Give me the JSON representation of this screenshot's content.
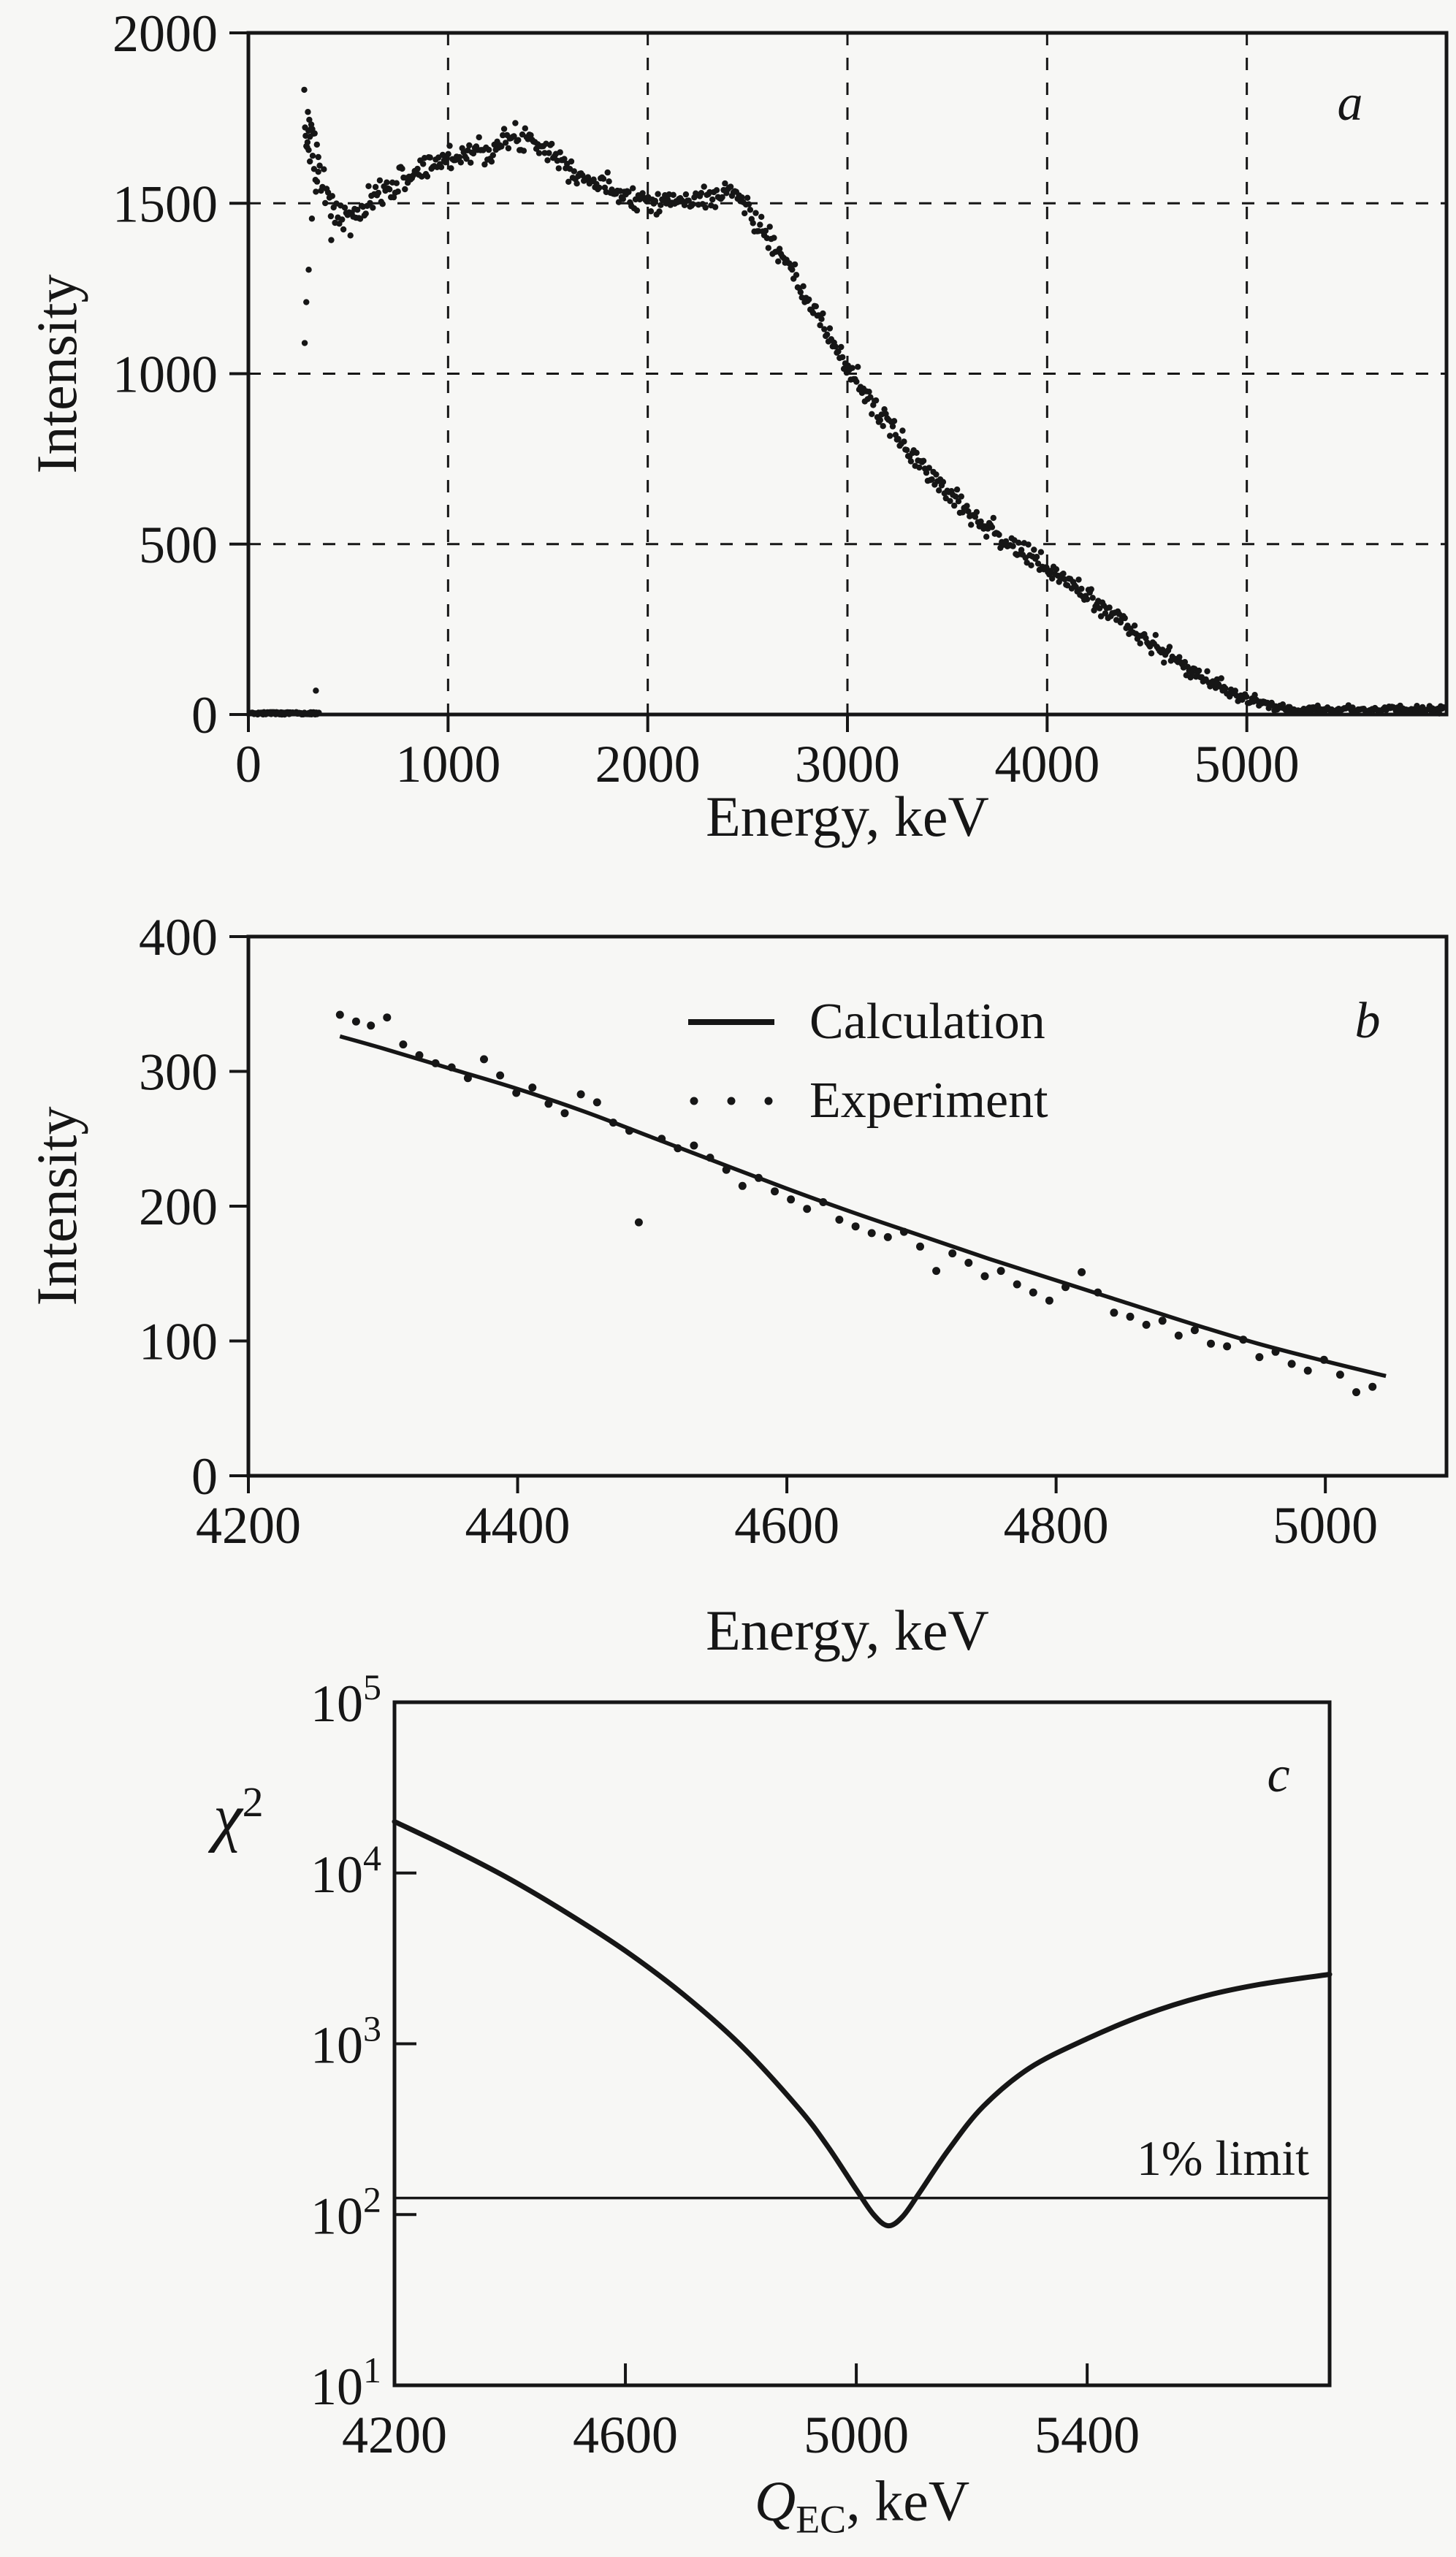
{
  "colors": {
    "background": "#f7f7f5",
    "ink": "#161616"
  },
  "seed": 7,
  "chart_data": [
    {
      "id": "a",
      "type": "scatter",
      "panel_label": "a",
      "xlabel": "Energy, keV",
      "ylabel": "Intensity",
      "xlim": [
        0,
        6000
      ],
      "ylim": [
        0,
        2000
      ],
      "xticks": [
        0,
        1000,
        2000,
        3000,
        4000,
        5000
      ],
      "yticks": [
        0,
        500,
        1000,
        1500,
        2000
      ],
      "grid": "dashed",
      "legend_position": "none",
      "series": [
        {
          "name": "measured-spectrum",
          "type": "scatter",
          "marker": "dot",
          "x_start": 280,
          "x_end": 5990,
          "x_step": 7,
          "dense_regions": [
            {
              "x_start": 284,
              "x_end": 350,
              "x_step": 6
            }
          ],
          "profile": [
            [
              280,
              1690
            ],
            [
              295,
              1715
            ],
            [
              310,
              1700
            ],
            [
              325,
              1665
            ],
            [
              340,
              1620
            ],
            [
              360,
              1560
            ],
            [
              400,
              1505
            ],
            [
              440,
              1470
            ],
            [
              480,
              1452
            ],
            [
              520,
              1455
            ],
            [
              560,
              1472
            ],
            [
              600,
              1492
            ],
            [
              650,
              1520
            ],
            [
              700,
              1545
            ],
            [
              750,
              1562
            ],
            [
              800,
              1580
            ],
            [
              850,
              1596
            ],
            [
              900,
              1610
            ],
            [
              950,
              1621
            ],
            [
              1000,
              1632
            ],
            [
              1050,
              1641
            ],
            [
              1100,
              1650
            ],
            [
              1150,
              1656
            ],
            [
              1200,
              1661
            ],
            [
              1250,
              1670
            ],
            [
              1300,
              1681
            ],
            [
              1350,
              1691
            ],
            [
              1400,
              1696
            ],
            [
              1450,
              1681
            ],
            [
              1500,
              1661
            ],
            [
              1550,
              1636
            ],
            [
              1600,
              1611
            ],
            [
              1650,
              1591
            ],
            [
              1700,
              1571
            ],
            [
              1750,
              1556
            ],
            [
              1800,
              1546
            ],
            [
              1850,
              1536
            ],
            [
              1900,
              1526
            ],
            [
              1950,
              1516
            ],
            [
              2000,
              1511
            ],
            [
              2100,
              1506
            ],
            [
              2200,
              1506
            ],
            [
              2300,
              1516
            ],
            [
              2350,
              1526
            ],
            [
              2400,
              1536
            ],
            [
              2450,
              1526
            ],
            [
              2500,
              1481
            ],
            [
              2550,
              1441
            ],
            [
              2600,
              1401
            ],
            [
              2700,
              1311
            ],
            [
              2800,
              1216
            ],
            [
              2900,
              1116
            ],
            [
              3000,
              1021
            ],
            [
              3100,
              931
            ],
            [
              3200,
              851
            ],
            [
              3300,
              781
            ],
            [
              3400,
              711
            ],
            [
              3500,
              661
            ],
            [
              3600,
              601
            ],
            [
              3700,
              551
            ],
            [
              3800,
              506
            ],
            [
              3900,
              466
            ],
            [
              4000,
              426
            ],
            [
              4100,
              391
            ],
            [
              4200,
              351
            ],
            [
              4300,
              306
            ],
            [
              4400,
              261
            ],
            [
              4500,
              216
            ],
            [
              4600,
              176
            ],
            [
              4700,
              136
            ],
            [
              4800,
              101
            ],
            [
              4900,
              71
            ],
            [
              5000,
              46
            ],
            [
              5050,
              34
            ],
            [
              5100,
              27
            ],
            [
              5150,
              21
            ],
            [
              5200,
              18
            ],
            [
              5300,
              16
            ],
            [
              5400,
              16
            ],
            [
              5600,
              15
            ],
            [
              5800,
              15
            ],
            [
              5990,
              15
            ]
          ],
          "sigma_profile": [
            [
              280,
              55
            ],
            [
              350,
              38
            ],
            [
              420,
              26
            ],
            [
              600,
              22
            ],
            [
              1200,
              20
            ],
            [
              2000,
              16
            ],
            [
              2600,
              17
            ],
            [
              3200,
              18
            ],
            [
              3800,
              16
            ],
            [
              4600,
              13
            ],
            [
              4900,
              10
            ],
            [
              5050,
              8
            ],
            [
              5200,
              5
            ],
            [
              5990,
              5
            ]
          ]
        },
        {
          "name": "zero-baseline-band",
          "type": "scatter",
          "marker": "dot",
          "x_start": 15,
          "x_end": 355,
          "x_step": 4.5,
          "y_max": 7
        },
        {
          "name": "stray-points",
          "type": "scatter",
          "marker": "dot",
          "points": [
            [
              298,
              1768
            ],
            [
              305,
              1745
            ],
            [
              290,
              1210
            ],
            [
              302,
              1305
            ],
            [
              282,
              1090
            ],
            [
              318,
              1455
            ],
            [
              415,
              1392
            ],
            [
              338,
              70
            ]
          ]
        }
      ]
    },
    {
      "id": "b",
      "type": "line+scatter",
      "panel_label": "b",
      "xlabel": "Energy, keV",
      "ylabel": "Intensity",
      "xlim": [
        4200,
        5090
      ],
      "ylim": [
        0,
        400
      ],
      "xticks": [
        4200,
        4400,
        4600,
        4800,
        5000
      ],
      "yticks": [
        0,
        100,
        200,
        300,
        400
      ],
      "grid": "none",
      "legend_position": "top-center-inside",
      "legend": {
        "items": [
          {
            "label": "Calculation",
            "marker": "line"
          },
          {
            "label": "Experiment",
            "marker": "dots"
          }
        ]
      },
      "series": [
        {
          "name": "Calculation",
          "type": "line",
          "points": [
            [
              4268,
              326
            ],
            [
              4300,
              317
            ],
            [
              4350,
              302
            ],
            [
              4400,
              287
            ],
            [
              4450,
              270
            ],
            [
              4500,
              251
            ],
            [
              4550,
              232
            ],
            [
              4600,
              213
            ],
            [
              4650,
              195
            ],
            [
              4700,
              178
            ],
            [
              4750,
              161
            ],
            [
              4800,
              145
            ],
            [
              4850,
              129
            ],
            [
              4900,
              113
            ],
            [
              4950,
              98
            ],
            [
              5000,
              85
            ],
            [
              5045,
              74
            ]
          ]
        },
        {
          "name": "Experiment",
          "type": "scatter",
          "marker": "dot",
          "points": [
            [
              4268,
              342
            ],
            [
              4280,
              337
            ],
            [
              4291,
              334
            ],
            [
              4303,
              340
            ],
            [
              4315,
              320
            ],
            [
              4327,
              312
            ],
            [
              4339,
              306
            ],
            [
              4351,
              303
            ],
            [
              4363,
              295
            ],
            [
              4375,
              309
            ],
            [
              4387,
              297
            ],
            [
              4399,
              284
            ],
            [
              4411,
              288
            ],
            [
              4423,
              276
            ],
            [
              4435,
              269
            ],
            [
              4447,
              283
            ],
            [
              4459,
              277
            ],
            [
              4471,
              262
            ],
            [
              4483,
              256
            ],
            [
              4490,
              188
            ],
            [
              4507,
              250
            ],
            [
              4519,
              243
            ],
            [
              4531,
              245
            ],
            [
              4543,
              236
            ],
            [
              4555,
              227
            ],
            [
              4567,
              215
            ],
            [
              4579,
              221
            ],
            [
              4591,
              211
            ],
            [
              4603,
              205
            ],
            [
              4615,
              198
            ],
            [
              4627,
              203
            ],
            [
              4639,
              190
            ],
            [
              4651,
              185
            ],
            [
              4663,
              180
            ],
            [
              4675,
              177
            ],
            [
              4687,
              181
            ],
            [
              4699,
              170
            ],
            [
              4711,
              152
            ],
            [
              4723,
              165
            ],
            [
              4735,
              158
            ],
            [
              4747,
              148
            ],
            [
              4759,
              152
            ],
            [
              4771,
              142
            ],
            [
              4783,
              136
            ],
            [
              4795,
              130
            ],
            [
              4807,
              140
            ],
            [
              4819,
              151
            ],
            [
              4831,
              136
            ],
            [
              4843,
              121
            ],
            [
              4855,
              118
            ],
            [
              4867,
              112
            ],
            [
              4879,
              115
            ],
            [
              4891,
              104
            ],
            [
              4903,
              108
            ],
            [
              4915,
              98
            ],
            [
              4927,
              96
            ],
            [
              4939,
              101
            ],
            [
              4951,
              88
            ],
            [
              4963,
              92
            ],
            [
              4975,
              83
            ],
            [
              4987,
              78
            ],
            [
              4999,
              86
            ],
            [
              5011,
              75
            ],
            [
              5023,
              62
            ],
            [
              5035,
              66
            ]
          ]
        }
      ]
    },
    {
      "id": "c",
      "type": "line",
      "panel_label": "c",
      "xlabel_parts": {
        "base": "Q",
        "sub": "EC",
        "rest": ", keV"
      },
      "ylabel_parts": {
        "base": "χ",
        "sup": "2"
      },
      "xlim": [
        4200,
        5820
      ],
      "yscale": "log",
      "ylim_exponents": [
        1,
        5
      ],
      "xticks": [
        4200,
        4600,
        5000,
        5400
      ],
      "ytick_exponents": [
        1,
        2,
        3,
        4,
        5
      ],
      "grid": "none",
      "series": [
        {
          "name": "chi-square-curve",
          "type": "line",
          "points": [
            [
              4200,
              20000
            ],
            [
              4300,
              13800
            ],
            [
              4400,
              9200
            ],
            [
              4500,
              5800
            ],
            [
              4600,
              3500
            ],
            [
              4700,
              1950
            ],
            [
              4800,
              980
            ],
            [
              4900,
              420
            ],
            [
              4950,
              252
            ],
            [
              5000,
              140
            ],
            [
              5030,
              100
            ],
            [
              5055,
              86
            ],
            [
              5080,
              97
            ],
            [
              5110,
              135
            ],
            [
              5160,
              240
            ],
            [
              5220,
              430
            ],
            [
              5300,
              720
            ],
            [
              5400,
              1070
            ],
            [
              5500,
              1480
            ],
            [
              5600,
              1890
            ],
            [
              5700,
              2230
            ],
            [
              5820,
              2550
            ]
          ]
        },
        {
          "name": "one-percent-limit-line",
          "type": "hline",
          "y": 125,
          "label": "1% limit"
        }
      ]
    }
  ]
}
